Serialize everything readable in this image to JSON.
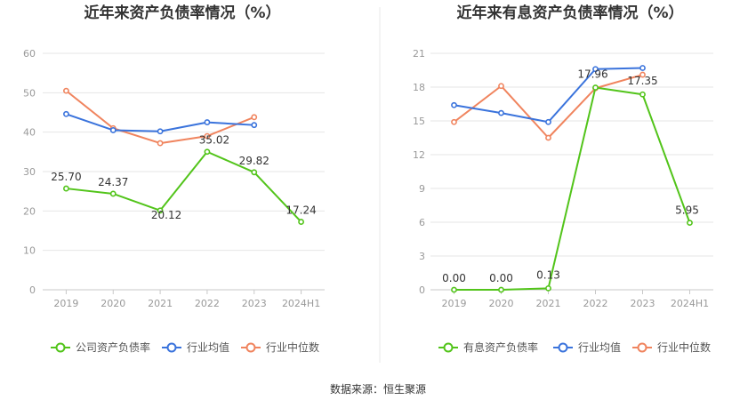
{
  "source_text": "数据来源：恒生聚源",
  "chart_data": [
    {
      "type": "line",
      "title": "近年来资产负债率情况（%）",
      "xlabel": "",
      "ylabel": "",
      "categories": [
        "2019",
        "2020",
        "2021",
        "2022",
        "2023",
        "2024H1"
      ],
      "ylim": [
        0,
        60
      ],
      "yticks": [
        "0",
        "10",
        "20",
        "30",
        "40",
        "50",
        "60"
      ],
      "grid": true,
      "legend_position": "bottom",
      "series": [
        {
          "name": "公司资产负债率",
          "color": "#52c41a",
          "labeled": true,
          "values": [
            25.7,
            24.37,
            20.12,
            35.02,
            29.82,
            17.24
          ],
          "labels": [
            "25.70",
            "24.37",
            "20.12",
            "35.02",
            "29.82",
            "17.24"
          ]
        },
        {
          "name": "行业均值",
          "color": "#3a73dc",
          "labeled": false,
          "values": [
            44.6,
            40.5,
            40.2,
            42.5,
            41.8,
            null
          ]
        },
        {
          "name": "行业中位数",
          "color": "#f0845e",
          "labeled": false,
          "values": [
            50.5,
            41.0,
            37.2,
            39.0,
            43.8,
            null
          ]
        }
      ]
    },
    {
      "type": "line",
      "title": "近年来有息资产负债率情况（%）",
      "xlabel": "",
      "ylabel": "",
      "categories": [
        "2019",
        "2020",
        "2021",
        "2022",
        "2023",
        "2024H1"
      ],
      "ylim": [
        0,
        21
      ],
      "yticks": [
        "0",
        "3",
        "6",
        "9",
        "12",
        "15",
        "18",
        "21"
      ],
      "grid": true,
      "legend_position": "bottom",
      "series": [
        {
          "name": "有息资产负债率",
          "color": "#52c41a",
          "labeled": true,
          "values": [
            0.0,
            0.0,
            0.13,
            17.96,
            17.35,
            5.95
          ],
          "labels": [
            "0.00",
            "0.00",
            "0.13",
            "17.96",
            "17.35",
            "5.95"
          ]
        },
        {
          "name": "行业均值",
          "color": "#3a73dc",
          "labeled": false,
          "values": [
            16.4,
            15.7,
            14.9,
            19.6,
            19.7,
            null
          ]
        },
        {
          "name": "行业中位数",
          "color": "#f0845e",
          "labeled": false,
          "values": [
            14.9,
            18.1,
            13.5,
            17.9,
            19.1,
            null
          ]
        }
      ]
    }
  ]
}
